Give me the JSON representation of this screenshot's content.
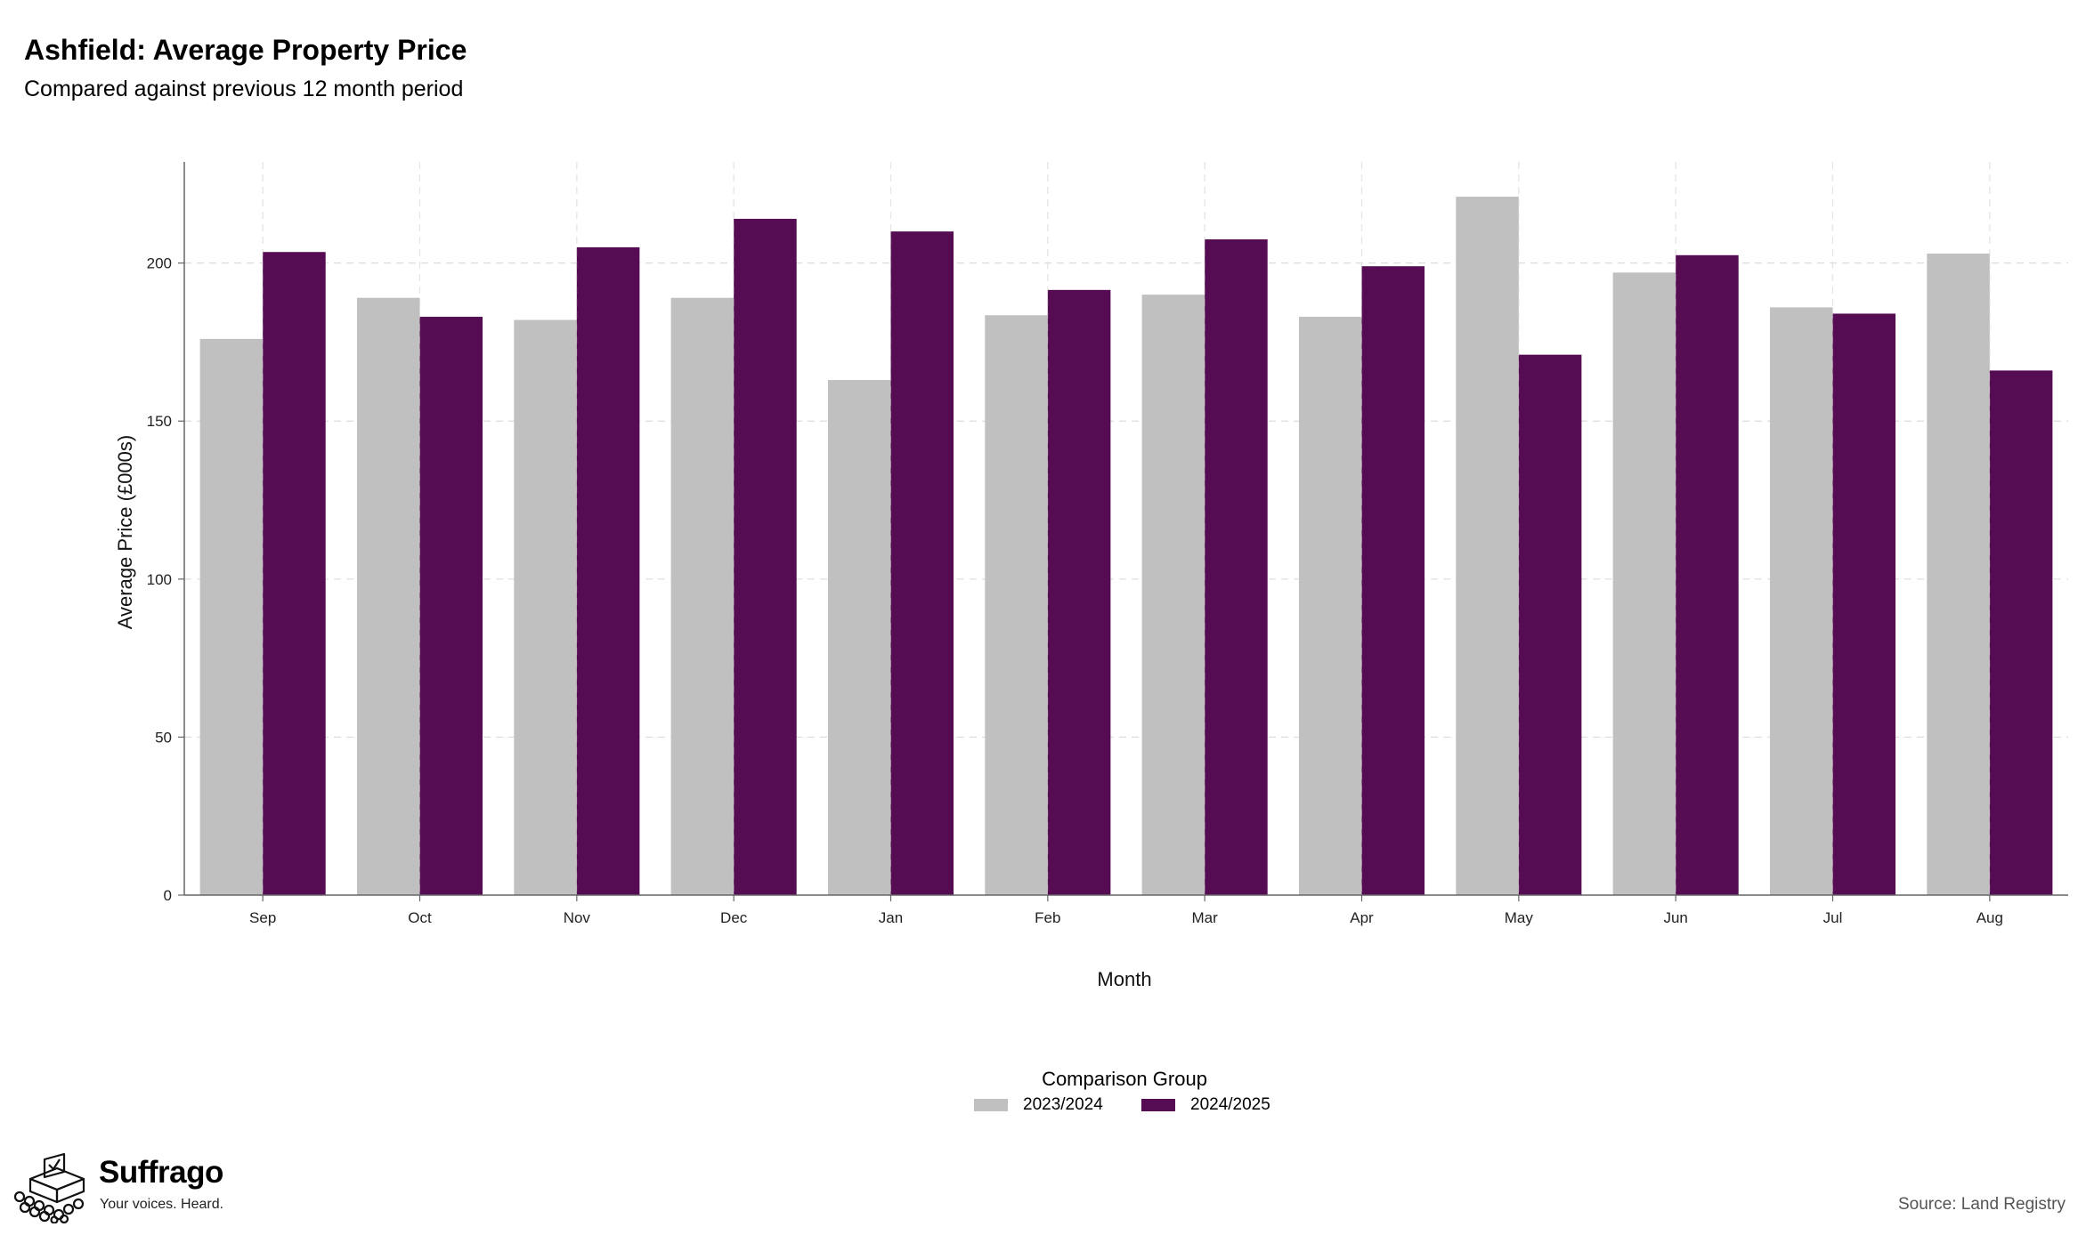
{
  "title": "Ashfield: Average Property Price",
  "subtitle": "Compared against previous 12 month period",
  "legend": {
    "title": "Comparison Group",
    "items": [
      {
        "label": "2023/2024",
        "color": "#c0c0c0"
      },
      {
        "label": "2024/2025",
        "color": "#560c52"
      }
    ]
  },
  "brand": {
    "name": "Suffrago",
    "tagline": "Your voices. Heard.",
    "icon": "ballot-box-crowd-icon"
  },
  "source": "Source: Land Registry",
  "chart_data": {
    "type": "bar",
    "title": "Ashfield: Average Property Price",
    "subtitle": "Compared against previous 12 month period",
    "xlabel": "Month",
    "ylabel": "Average Price (£000s)",
    "categories": [
      "Sep",
      "Oct",
      "Nov",
      "Dec",
      "Jan",
      "Feb",
      "Mar",
      "Apr",
      "May",
      "Jun",
      "Jul",
      "Aug"
    ],
    "series": [
      {
        "name": "2023/2024",
        "color": "#c0c0c0",
        "values": [
          176,
          189,
          182,
          189,
          163,
          183.5,
          190,
          183,
          221,
          197,
          186,
          203
        ]
      },
      {
        "name": "2024/2025",
        "color": "#560c52",
        "values": [
          203.5,
          183,
          205,
          214,
          210,
          191.5,
          207.5,
          199,
          171,
          202.5,
          184,
          166
        ]
      }
    ],
    "ylim": [
      0,
      232
    ],
    "yticks": [
      0,
      50,
      100,
      150,
      200
    ],
    "grid": true,
    "legend_position": "bottom"
  }
}
